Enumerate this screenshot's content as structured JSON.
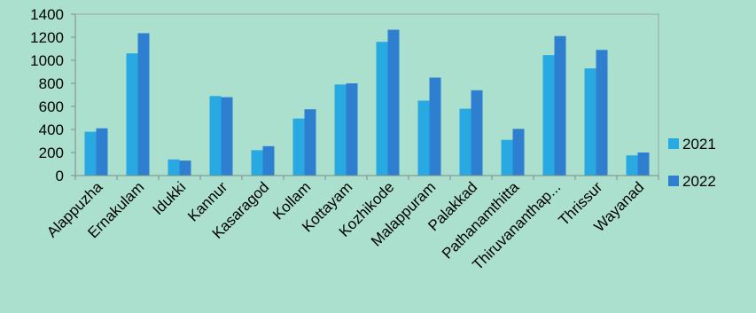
{
  "chart_data": {
    "type": "bar",
    "categories": [
      "Alappuzha",
      "Ernakulam",
      "Idukki",
      "Kannur",
      "Kasaragod",
      "Kollam",
      "Kottayam",
      "Kozhikode",
      "Malappuram",
      "Palakkad",
      "Pathanamthitta",
      "Thiruvananthap...",
      "Thrissur",
      "Wayanad"
    ],
    "series": [
      {
        "name": "2021",
        "color": "#29a9e1",
        "values": [
          380,
          1060,
          140,
          690,
          220,
          495,
          790,
          1160,
          650,
          580,
          310,
          1045,
          930,
          175
        ]
      },
      {
        "name": "2022",
        "color": "#2e7fd0",
        "values": [
          410,
          1235,
          130,
          680,
          255,
          575,
          800,
          1265,
          850,
          740,
          405,
          1210,
          1090,
          200
        ]
      }
    ],
    "ylim": [
      0,
      1400
    ],
    "yticks": [
      0,
      200,
      400,
      600,
      800,
      1000,
      1200,
      1400
    ],
    "grid": false,
    "legend_position": "right"
  }
}
